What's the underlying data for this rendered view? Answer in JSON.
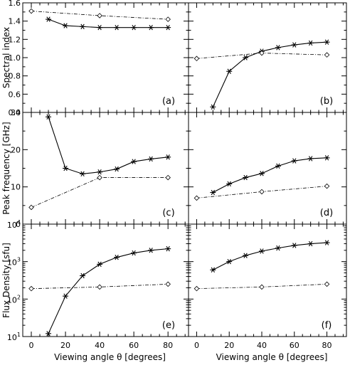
{
  "chart_data": {
    "type": "line",
    "xlabel": "Viewing angle θ [degrees]",
    "xlim": [
      -5,
      92
    ],
    "xticks": [
      0,
      20,
      40,
      60,
      80
    ],
    "panels": [
      {
        "label": "(a)",
        "ylabel": "Spectral index",
        "yscale": "linear",
        "ylim": [
          0.4,
          1.6
        ],
        "yticks": [
          0.4,
          0.6,
          0.8,
          1.0,
          1.2,
          1.4,
          1.6
        ],
        "ytick_labels": [
          "0.4",
          "0.6",
          "0.8",
          "1.0",
          "1.2",
          "1.4",
          "1.6"
        ],
        "series": [
          {
            "style": "solid-asterisk",
            "x": [
              10,
              20,
              30,
              40,
              50,
              60,
              70,
              80
            ],
            "y": [
              1.42,
              1.35,
              1.34,
              1.33,
              1.33,
              1.33,
              1.33,
              1.33
            ]
          },
          {
            "style": "dashdot-diamond",
            "x": [
              0,
              40,
              80
            ],
            "y": [
              1.51,
              1.46,
              1.42
            ]
          }
        ]
      },
      {
        "label": "(b)",
        "ylabel": "",
        "yscale": "linear",
        "ylim": [
          0.4,
          1.6
        ],
        "yticks": [
          0.4,
          0.6,
          0.8,
          1.0,
          1.2,
          1.4,
          1.6
        ],
        "ytick_labels": [],
        "series": [
          {
            "style": "solid-asterisk",
            "x": [
              10,
              20,
              30,
              40,
              50,
              60,
              70,
              80
            ],
            "y": [
              0.46,
              0.85,
              1.0,
              1.07,
              1.11,
              1.14,
              1.16,
              1.17
            ]
          },
          {
            "style": "dashdot-diamond",
            "x": [
              0,
              40,
              80
            ],
            "y": [
              0.99,
              1.05,
              1.03
            ]
          }
        ]
      },
      {
        "label": "(c)",
        "ylabel": "Peak frequency [GHz]",
        "yscale": "linear",
        "ylim": [
          0,
          30
        ],
        "yticks": [
          0,
          10,
          20,
          30
        ],
        "ytick_labels": [
          "0",
          "10",
          "20",
          "30"
        ],
        "series": [
          {
            "style": "solid-asterisk",
            "x": [
              10,
              20,
              30,
              40,
              50,
              60,
              70,
              80
            ],
            "y": [
              28.8,
              15.0,
              13.5,
              14.0,
              14.8,
              16.8,
              17.5,
              18.0
            ]
          },
          {
            "style": "dashdot-diamond",
            "x": [
              0,
              40,
              80
            ],
            "y": [
              4.5,
              12.5,
              12.5
            ]
          }
        ]
      },
      {
        "label": "(d)",
        "ylabel": "",
        "yscale": "linear",
        "ylim": [
          0,
          30
        ],
        "yticks": [
          0,
          10,
          20,
          30
        ],
        "ytick_labels": [],
        "series": [
          {
            "style": "solid-asterisk",
            "x": [
              10,
              20,
              30,
              40,
              50,
              60,
              70,
              80
            ],
            "y": [
              8.5,
              10.8,
              12.5,
              13.6,
              15.6,
              17.0,
              17.6,
              17.8
            ]
          },
          {
            "style": "dashdot-diamond",
            "x": [
              0,
              40,
              80
            ],
            "y": [
              7.0,
              8.7,
              10.2
            ]
          }
        ]
      },
      {
        "label": "(e)",
        "ylabel": "Flux Density [sfu]",
        "yscale": "log",
        "ylim": [
          10,
          10000
        ],
        "yticks": [
          10,
          100,
          1000,
          10000
        ],
        "ytick_labels": [
          [
            "10",
            "1"
          ],
          [
            "10",
            "2"
          ],
          [
            "10",
            "3"
          ],
          [
            "10",
            "4"
          ]
        ],
        "series": [
          {
            "style": "solid-asterisk",
            "x": [
              10,
              20,
              30,
              40,
              50,
              60,
              70,
              80
            ],
            "y": [
              12,
              120,
              420,
              850,
              1300,
              1700,
              2000,
              2200
            ]
          },
          {
            "style": "dashdot-diamond",
            "x": [
              0,
              40,
              80
            ],
            "y": [
              190,
              210,
              250
            ]
          }
        ]
      },
      {
        "label": "(f)",
        "ylabel": "",
        "yscale": "log",
        "ylim": [
          10,
          10000
        ],
        "yticks": [
          10,
          100,
          1000,
          10000
        ],
        "ytick_labels": [],
        "series": [
          {
            "style": "solid-asterisk",
            "x": [
              10,
              20,
              30,
              40,
              50,
              60,
              70,
              80
            ],
            "y": [
              600,
              1000,
              1450,
              1900,
              2300,
              2700,
              3000,
              3200
            ]
          },
          {
            "style": "dashdot-diamond",
            "x": [
              0,
              40,
              80
            ],
            "y": [
              190,
              210,
              250
            ]
          }
        ]
      }
    ]
  }
}
